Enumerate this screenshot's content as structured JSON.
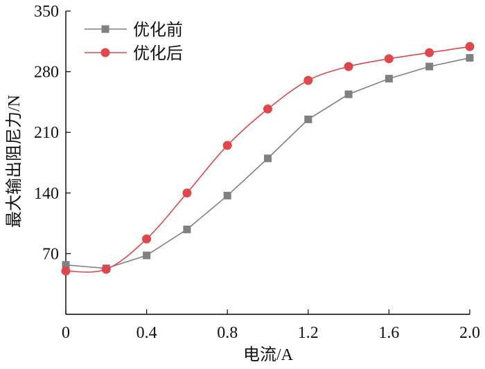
{
  "chart_data": {
    "type": "line",
    "title": "",
    "xlabel": "电流/A",
    "ylabel": "最大输出阻尼力/N",
    "x": [
      0,
      0.2,
      0.4,
      0.6,
      0.8,
      1.0,
      1.2,
      1.4,
      1.6,
      1.8,
      2.0
    ],
    "xlim": [
      0,
      2.0
    ],
    "ylim": [
      0,
      350
    ],
    "x_ticks": [
      0,
      0.4,
      0.8,
      1.2,
      1.6,
      2.0
    ],
    "x_tick_labels": [
      "0",
      "0.4",
      "0.8",
      "1.2",
      "1.6",
      "2.0"
    ],
    "y_ticks": [
      70,
      140,
      210,
      280,
      350
    ],
    "y_tick_labels": [
      "70",
      "140",
      "210",
      "280",
      "350"
    ],
    "grid": false,
    "legend_position": "top-left",
    "series": [
      {
        "name": "优化前",
        "marker": "square",
        "color": "#808080",
        "values": [
          57,
          53,
          68,
          98,
          137,
          180,
          225,
          254,
          272,
          286,
          296
        ]
      },
      {
        "name": "优化后",
        "marker": "circle",
        "color": "#e0474c",
        "values": [
          50,
          52,
          87,
          140,
          195,
          237,
          270,
          286,
          295,
          302,
          309
        ]
      }
    ]
  }
}
